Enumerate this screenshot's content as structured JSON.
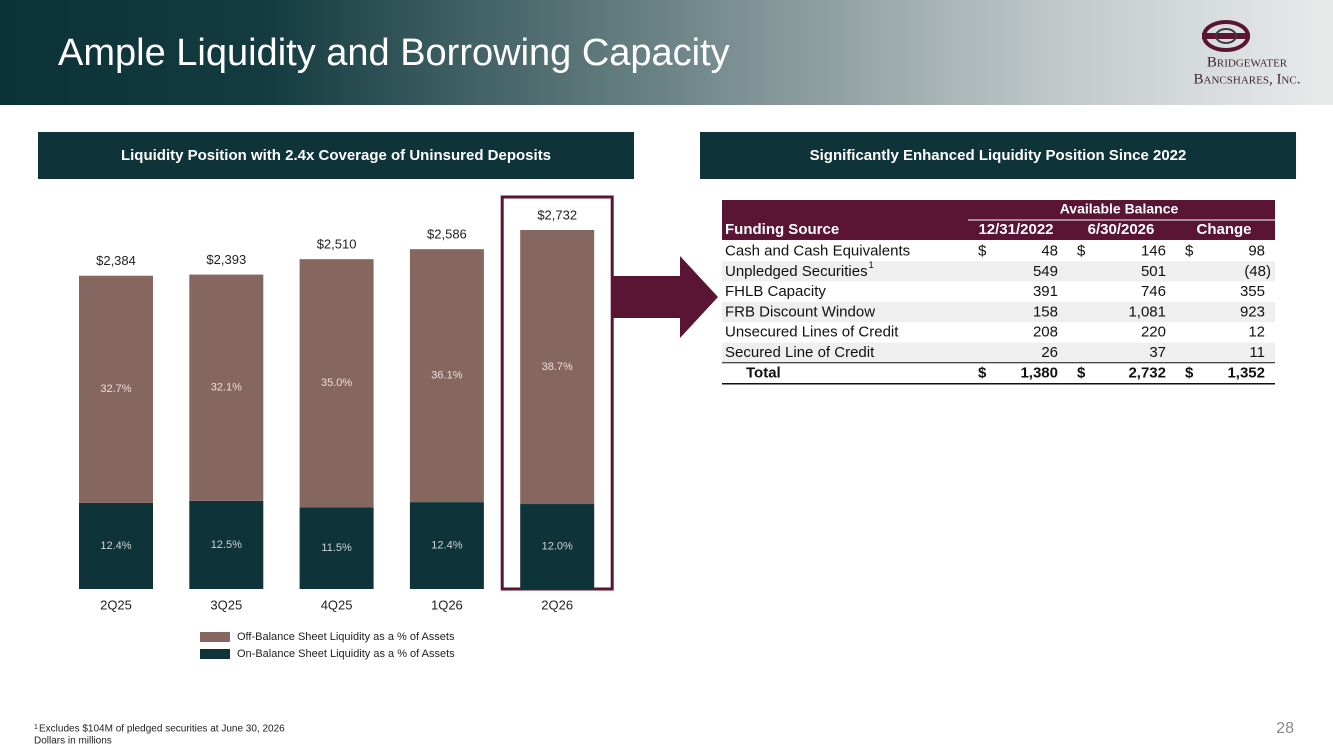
{
  "header": {
    "title": "Ample Liquidity and Borrowing Capacity",
    "logo_line1": "Bridgewater",
    "logo_line2": "Bancshares, Inc."
  },
  "left_panel": {
    "title": "Liquidity Position with 2.4x Coverage of Uninsured Deposits"
  },
  "right_panel": {
    "title": "Significantly Enhanced Liquidity Position Since 2022"
  },
  "chart_data": {
    "type": "stacked_bar",
    "categories": [
      "2Q25",
      "3Q25",
      "4Q25",
      "1Q26",
      "2Q26"
    ],
    "totals": {
      "values": [
        2384,
        2393,
        2510,
        2586,
        2732
      ],
      "value_labels": [
        "$2,384",
        "$2,393",
        "$2,510",
        "$2,586",
        "$2,732"
      ]
    },
    "series": [
      {
        "name": "On-Balance Sheet Liquidity as a % of Assets",
        "color": "#0e3338",
        "label_color": "#cdd6d7",
        "values": [
          12.4,
          12.5,
          11.5,
          12.4,
          12.0
        ],
        "value_labels": [
          "12.4%",
          "12.5%",
          "11.5%",
          "12.4%",
          "12.0%"
        ]
      },
      {
        "name": "Off-Balance Sheet Liquidity as a % of Assets",
        "color": "#86675f",
        "label_color": "#eadfdb",
        "values": [
          32.7,
          32.1,
          35.0,
          36.1,
          38.7
        ],
        "value_labels": [
          "32.7%",
          "32.1%",
          "35.0%",
          "36.1%",
          "38.7%"
        ]
      }
    ],
    "highlight_index": 4,
    "highlight_color": "#5a1434"
  },
  "table": {
    "group_header": "Available Balance",
    "columns": [
      "Funding Source",
      "12/31/2022",
      "6/30/2026",
      "Change"
    ],
    "currency_symbol": "$",
    "rows": [
      {
        "label": "Cash and Cash Equivalents",
        "values": [
          "48",
          "146",
          "98"
        ],
        "currency": true
      },
      {
        "label": "Unpledged Securities",
        "footnote_ref": "1",
        "values": [
          "549",
          "501",
          "(48)"
        ]
      },
      {
        "label": "FHLB Capacity",
        "values": [
          "391",
          "746",
          "355"
        ]
      },
      {
        "label": "FRB Discount Window",
        "values": [
          "158",
          "1,081",
          "923"
        ]
      },
      {
        "label": "Unsecured Lines of Credit",
        "values": [
          "208",
          "220",
          "12"
        ]
      },
      {
        "label": "Secured Line of Credit",
        "values": [
          "26",
          "37",
          "11"
        ]
      },
      {
        "label": "Total",
        "values": [
          "1,380",
          "2,732",
          "1,352"
        ],
        "currency": true,
        "total": true
      }
    ]
  },
  "footer": {
    "footnote_marker": "1",
    "footnote": "Excludes $104M of pledged securities at June 30, 2026",
    "note": "Dollars in millions",
    "page_number": "28"
  }
}
